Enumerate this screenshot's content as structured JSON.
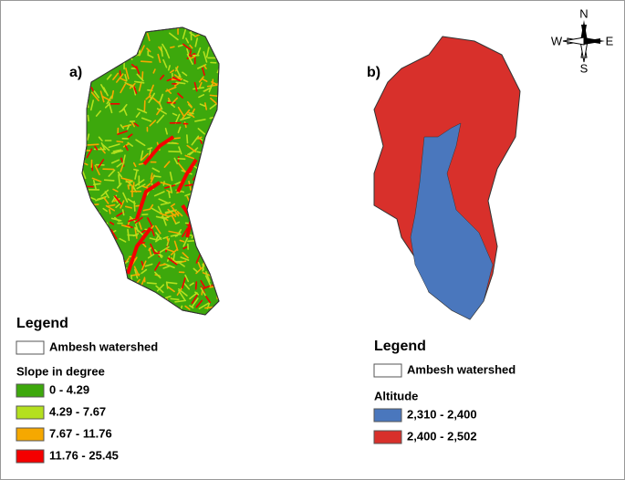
{
  "compass": {
    "north": "N",
    "east": "E",
    "south": "S",
    "west": "W"
  },
  "panels": [
    {
      "label": "a)",
      "legend": {
        "title": "Legend",
        "boundary": "Ambesh watershed",
        "subtitle": "Slope in degree",
        "classes": [
          {
            "label": "0 - 4.29",
            "color": "#3da80c"
          },
          {
            "label": "4.29 - 7.67",
            "color": "#b4e01e"
          },
          {
            "label": "7.67 - 11.76",
            "color": "#f6a800"
          },
          {
            "label": "11.76 - 25.45",
            "color": "#f40000"
          }
        ]
      }
    },
    {
      "label": "b)",
      "legend": {
        "title": "Legend",
        "boundary": "Ambesh watershed",
        "subtitle": "Altitude",
        "classes": [
          {
            "label": "2,310 - 2,400",
            "color": "#4a77bd"
          },
          {
            "label": "2,400 - 2,502",
            "color": "#d8302b"
          }
        ]
      }
    }
  ]
}
